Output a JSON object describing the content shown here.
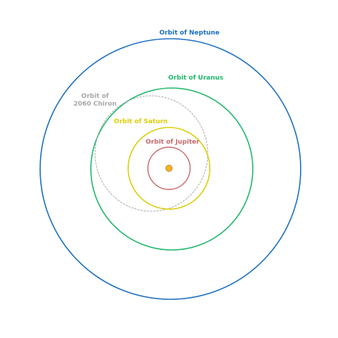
{
  "orbits": {
    "neptune": {
      "label": "Orbit of Neptune",
      "color": "#1b6fc0"
    },
    "uranus": {
      "label": "Orbit of Uranus",
      "color": "#1fb86a"
    },
    "chiron": {
      "label_line1": "Orbit of",
      "label_line2": "2060 Chiron",
      "color": "#a8a8a8"
    },
    "saturn": {
      "label": "Orbit of Saturn",
      "color": "#dccd0a"
    },
    "jupiter": {
      "label": "Orbit of Jupiter",
      "color": "#c76a6a"
    }
  },
  "sun": {
    "color": "#f1b32a",
    "stroke": "#c98a10"
  }
}
